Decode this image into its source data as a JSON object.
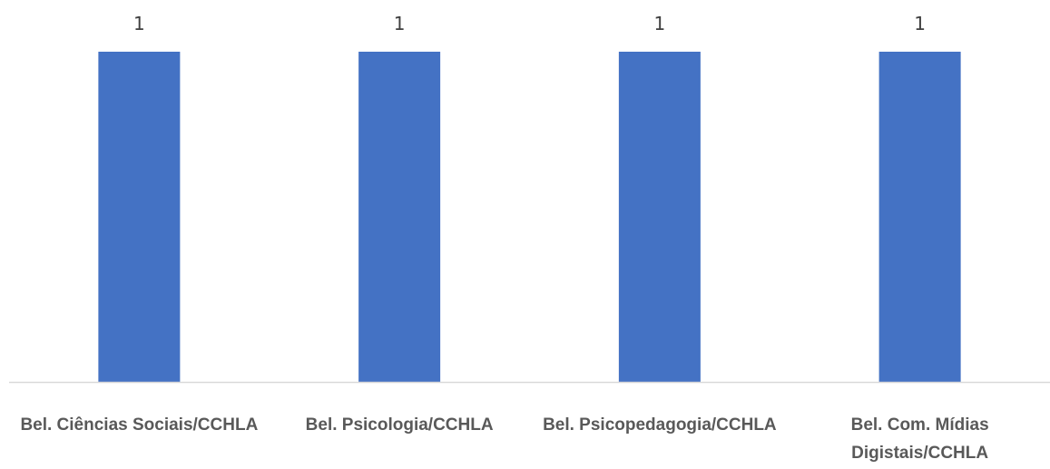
{
  "chart_data": {
    "type": "bar",
    "categories": [
      [
        "Bel. Ciências Sociais/CCHLA"
      ],
      [
        "Bel. Psicologia/CCHLA"
      ],
      [
        "Bel. Psicopedagogia/CCHLA"
      ],
      [
        "Bel. Com. Mídias",
        "Digistais/CCHLA"
      ]
    ],
    "values": [
      1,
      1,
      1,
      1
    ],
    "data_labels": [
      "1",
      "1",
      "1",
      "1"
    ],
    "ylim": [
      0,
      1
    ],
    "grid": false,
    "legend": "none",
    "bar_color": "#4472C4",
    "axis_color": "#D9D9D9",
    "label_color": "#595959",
    "value_label_color": "#404040"
  }
}
